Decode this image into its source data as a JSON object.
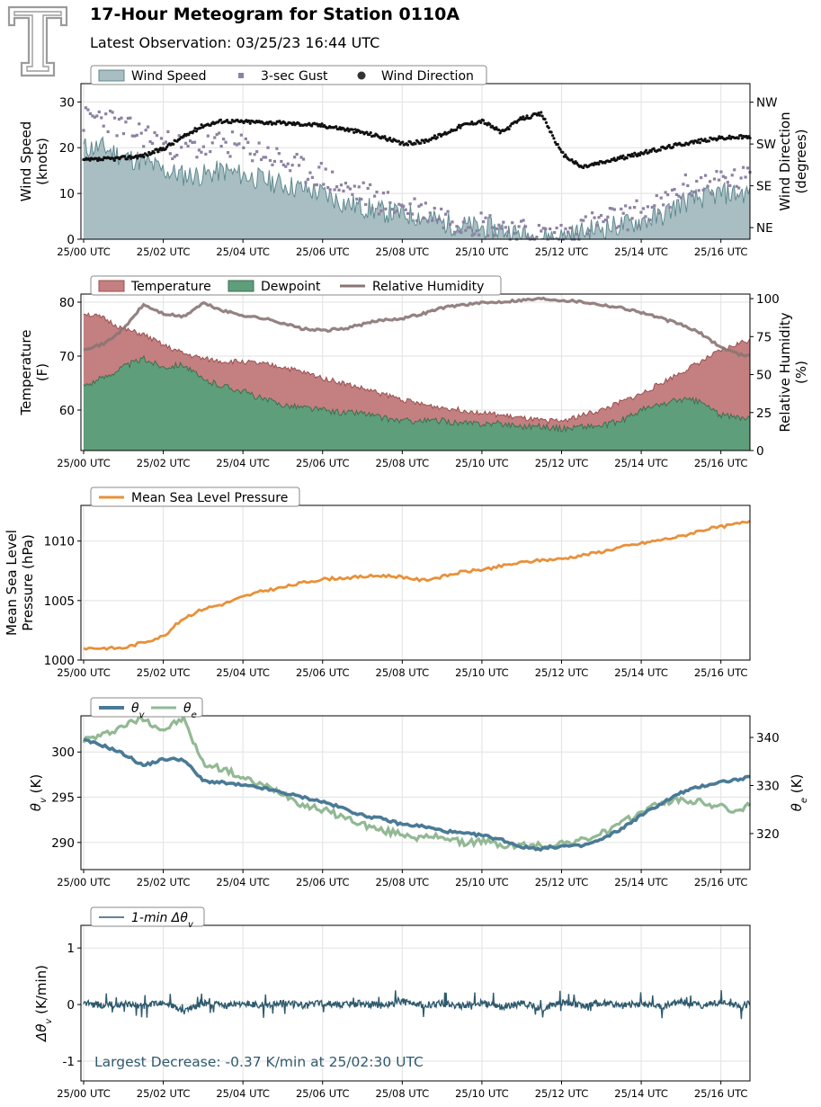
{
  "header": {
    "title": "17-Hour Meteogram for Station 0110A",
    "subtitle": "Latest Observation: 03/25/23 16:44 UTC",
    "logo_name": "texas-tech-double-t-logo"
  },
  "colors": {
    "wind_speed": "#a8bec3",
    "wind_speed_line": "#5f8a8f",
    "gust": "#8d82a2",
    "direction": "#111111",
    "temperature": "#c48080",
    "temperature_line": "#9a4f4f",
    "dewpoint": "#5f9e7a",
    "dewpoint_line": "#3e6e52",
    "rh": "#8a7474",
    "pressure": "#e8913a",
    "theta_v": "#4a7a96",
    "theta_e": "#92b994",
    "dtheta": "#2f5a6e",
    "annotation": "#2f5a6e",
    "grid": "#e6e6e6"
  },
  "x_ticks": [
    "25/00 UTC",
    "25/02 UTC",
    "25/04 UTC",
    "25/06 UTC",
    "25/08 UTC",
    "25/10 UTC",
    "25/12 UTC",
    "25/14 UTC",
    "25/16 UTC"
  ],
  "chart_data": [
    {
      "type": "area",
      "name": "wind",
      "ylabel": "Wind Speed\n(knots)",
      "y2label": "Wind Direction\n(degrees)",
      "ylim": [
        0,
        34
      ],
      "yticks": [
        0,
        10,
        20,
        30
      ],
      "y2lim": [
        20,
        355
      ],
      "y2ticks": [
        {
          "label": "NE",
          "value": 45
        },
        {
          "label": "SE",
          "value": 135
        },
        {
          "label": "SW",
          "value": 225
        },
        {
          "label": "NW",
          "value": 315
        }
      ],
      "legend": [
        "Wind Speed",
        "3-sec Gust",
        "Wind Direction"
      ],
      "legend_placement": "top-left",
      "grid": true,
      "series": [
        {
          "name": "Wind Speed",
          "x": [
            0,
            0.5,
            1,
            1.5,
            2,
            2.5,
            3,
            3.5,
            4,
            4.5,
            5,
            5.5,
            6,
            6.5,
            7,
            7.5,
            8,
            8.5,
            9,
            9.5,
            10,
            10.5,
            11,
            11.5,
            12,
            12.5,
            13,
            13.5,
            14,
            14.5,
            15,
            15.5,
            16,
            16.5,
            16.73
          ],
          "values": [
            20,
            20,
            18,
            17,
            15,
            14,
            14,
            15,
            14,
            13,
            12,
            11,
            10,
            8,
            7,
            6,
            5.5,
            5,
            3.5,
            3,
            2.5,
            2,
            1,
            0.5,
            0.5,
            1.5,
            2.5,
            3,
            4,
            5,
            8,
            9,
            10,
            10,
            10
          ]
        },
        {
          "name": "3-sec Gust",
          "x": [
            0,
            0.5,
            1,
            1.5,
            2,
            2.5,
            3,
            3.5,
            4,
            4.5,
            5,
            5.5,
            6,
            6.5,
            7,
            7.5,
            8,
            8.5,
            9,
            9.5,
            10,
            10.5,
            11,
            11.5,
            12,
            12.5,
            13,
            13.5,
            14,
            14.5,
            15,
            15.5,
            16,
            16.5,
            16.73
          ],
          "values": [
            26,
            27,
            24,
            23,
            21,
            20,
            20,
            21,
            20,
            19,
            17,
            15,
            14,
            11,
            10,
            8,
            7,
            6.5,
            5,
            4,
            3.5,
            3,
            1.5,
            1,
            1,
            2.5,
            4,
            4.5,
            6,
            7,
            11,
            12,
            13,
            13,
            13
          ]
        },
        {
          "name": "Wind Direction",
          "x": [
            0,
            0.5,
            1,
            1.5,
            2,
            2.5,
            3,
            3.5,
            4,
            4.5,
            5,
            5.5,
            6,
            6.5,
            7,
            7.5,
            8,
            8.5,
            9,
            9.5,
            10,
            10.5,
            11,
            11.5,
            12,
            12.5,
            13,
            13.5,
            14,
            14.5,
            15,
            15.5,
            16,
            16.5,
            16.73
          ],
          "values": [
            190,
            192,
            195,
            200,
            215,
            240,
            265,
            275,
            273,
            272,
            270,
            268,
            265,
            258,
            250,
            240,
            225,
            230,
            245,
            265,
            275,
            250,
            280,
            290,
            205,
            175,
            185,
            195,
            205,
            215,
            225,
            232,
            238,
            240,
            240
          ]
        }
      ]
    },
    {
      "type": "area",
      "name": "temperature",
      "ylabel": "Temperature\n(F)",
      "y2label": "Relative Humidity\n(%)",
      "ylim": [
        52.5,
        81.5
      ],
      "yticks": [
        60,
        70,
        80
      ],
      "y2lim": [
        0,
        103
      ],
      "y2ticks": [
        0,
        25,
        50,
        75,
        100
      ],
      "legend": [
        "Temperature",
        "Dewpoint",
        "Relative Humidity"
      ],
      "legend_placement": "top-left",
      "grid": true,
      "series": [
        {
          "name": "Temperature",
          "x": [
            0,
            0.5,
            1,
            1.5,
            2,
            2.5,
            3,
            3.5,
            4,
            4.5,
            5,
            5.5,
            6,
            6.5,
            7,
            7.5,
            8,
            8.5,
            9,
            9.5,
            10,
            10.5,
            11,
            11.5,
            12,
            12.5,
            13,
            13.5,
            14,
            14.5,
            15,
            15.5,
            16,
            16.5,
            16.73
          ],
          "values": [
            78,
            77,
            75,
            74,
            72,
            70.5,
            69.5,
            69,
            69,
            68.5,
            68,
            67,
            66,
            65,
            64,
            63,
            62,
            61,
            60.5,
            60,
            59.5,
            59,
            58.5,
            58,
            58,
            59,
            60,
            61.5,
            63,
            65,
            67,
            69,
            71,
            72.5,
            73
          ]
        },
        {
          "name": "Dewpoint",
          "x": [
            0,
            0.5,
            1,
            1.5,
            2,
            2.5,
            3,
            3.5,
            4,
            4.5,
            5,
            5.5,
            6,
            6.5,
            7,
            7.5,
            8,
            8.5,
            9,
            9.5,
            10,
            10.5,
            11,
            11.5,
            12,
            12.5,
            13,
            13.5,
            14,
            14.5,
            15,
            15.5,
            16,
            16.5,
            16.73
          ],
          "values": [
            64.5,
            66,
            68,
            69.5,
            68,
            68.5,
            65.5,
            64.5,
            63.5,
            62,
            61,
            60.5,
            60,
            59.5,
            59.5,
            58.5,
            58,
            58,
            58,
            57.5,
            57.5,
            57.5,
            57,
            57,
            56.5,
            57,
            57,
            58,
            60,
            61,
            62,
            61.5,
            59,
            58.5,
            59
          ]
        },
        {
          "name": "Relative Humidity",
          "x": [
            0,
            0.5,
            1,
            1.5,
            2,
            2.5,
            3,
            3.5,
            4,
            4.5,
            5,
            5.5,
            6,
            6.5,
            7,
            7.5,
            8,
            8.5,
            9,
            9.5,
            10,
            10.5,
            11,
            11.5,
            12,
            12.5,
            13,
            13.5,
            14,
            14.5,
            15,
            15.5,
            16,
            16.5,
            16.73
          ],
          "values": [
            67,
            70,
            80,
            96,
            90,
            88,
            97,
            92,
            89,
            87,
            84,
            80,
            79,
            80,
            83,
            86,
            87,
            90,
            94,
            96,
            97,
            98,
            99,
            100,
            99,
            98,
            96,
            94,
            91,
            87,
            83,
            77,
            68,
            63,
            63
          ]
        }
      ]
    },
    {
      "type": "line",
      "name": "pressure",
      "ylabel": "Mean Sea Level\nPressure (hPa)",
      "ylim": [
        1000,
        1013
      ],
      "yticks": [
        1000,
        1005,
        1010
      ],
      "legend": [
        "Mean Sea Level Pressure"
      ],
      "legend_placement": "top-left",
      "grid": true,
      "series": [
        {
          "name": "Mean Sea Level Pressure",
          "x": [
            0,
            0.5,
            1,
            1.5,
            2,
            2.5,
            3,
            3.5,
            4,
            4.5,
            5,
            5.5,
            6,
            6.5,
            7,
            7.5,
            8,
            8.5,
            9,
            9.5,
            10,
            10.5,
            11,
            11.5,
            12,
            12.5,
            13,
            13.5,
            14,
            14.5,
            15,
            15.5,
            16,
            16.5,
            16.73
          ],
          "values": [
            1001,
            1001,
            1001,
            1001.5,
            1002,
            1003.5,
            1004.3,
            1004.7,
            1005.3,
            1005.8,
            1006.1,
            1006.5,
            1006.8,
            1006.9,
            1007,
            1007.1,
            1007,
            1006.7,
            1007,
            1007.4,
            1007.6,
            1007.9,
            1008.2,
            1008.4,
            1008.5,
            1008.8,
            1009.1,
            1009.5,
            1009.8,
            1010.1,
            1010.4,
            1010.9,
            1011.2,
            1011.5,
            1011.7
          ]
        }
      ]
    },
    {
      "type": "line",
      "name": "theta",
      "ylabel": "θv (K)",
      "y2label": "θe (K)",
      "ylim": [
        287,
        304
      ],
      "yticks": [
        290,
        295,
        300
      ],
      "y2lim": [
        312.5,
        344.5
      ],
      "y2ticks": [
        320,
        330,
        340
      ],
      "legend": [
        "θv",
        "θe"
      ],
      "legend_placement": "top-left",
      "grid": true,
      "series": [
        {
          "name": "θv",
          "x": [
            0,
            0.5,
            1,
            1.5,
            2,
            2.5,
            3,
            3.5,
            4,
            4.5,
            5,
            5.5,
            6,
            6.5,
            7,
            7.5,
            8,
            8.5,
            9,
            9.5,
            10,
            10.5,
            11,
            11.5,
            12,
            12.5,
            13,
            13.5,
            14,
            14.5,
            15,
            15.5,
            16,
            16.5,
            16.73
          ],
          "values": [
            301.3,
            300.7,
            299.8,
            298.5,
            299.2,
            299.2,
            296.8,
            296.6,
            296.3,
            296,
            295.5,
            295,
            294.5,
            293.8,
            293,
            292.6,
            292,
            291.8,
            291.3,
            291,
            290.8,
            290.3,
            289.5,
            289.3,
            289.6,
            289.6,
            290.3,
            291.5,
            293,
            294.3,
            295.5,
            296.2,
            296.7,
            297.0,
            297.2
          ]
        },
        {
          "name": "θe",
          "x": [
            0,
            0.5,
            1,
            1.5,
            2,
            2.5,
            3,
            3.5,
            4,
            4.5,
            5,
            5.5,
            6,
            6.5,
            7,
            7.5,
            8,
            8.5,
            9,
            9.5,
            10,
            10.5,
            11,
            11.5,
            12,
            12.5,
            13,
            13.5,
            14,
            14.5,
            15,
            15.5,
            16,
            16.5,
            16.73
          ],
          "values": [
            339.5,
            340.5,
            342.5,
            344,
            341.5,
            344,
            334.5,
            333.5,
            331.5,
            330,
            328.5,
            326,
            325,
            323.5,
            322,
            320.5,
            320,
            319,
            319.5,
            318,
            318.5,
            317.5,
            317.5,
            317.5,
            318,
            318.5,
            320,
            322,
            324.5,
            326.5,
            327,
            326.5,
            325.5,
            324.5,
            326
          ]
        }
      ]
    },
    {
      "type": "line",
      "name": "dtheta",
      "ylabel": "Δθv (K/min)",
      "ylim": [
        -1.35,
        1.4
      ],
      "yticks": [
        -1,
        0,
        1
      ],
      "legend": [
        "1-min Δθv"
      ],
      "legend_placement": "top-left",
      "grid": true,
      "annotation": "Largest Decrease: -0.37 K/min at 25/02:30 UTC",
      "series": [
        {
          "name": "1-min Δθv",
          "x": [
            0,
            0.5,
            1,
            1.5,
            2,
            2.5,
            3,
            3.5,
            4,
            4.5,
            5,
            5.5,
            6,
            6.5,
            7,
            7.5,
            8,
            8.5,
            9,
            9.5,
            10,
            10.5,
            11,
            11.5,
            12,
            12.5,
            13,
            13.5,
            14,
            14.5,
            15,
            15.5,
            16,
            16.5,
            16.73
          ],
          "values": [
            0.05,
            -0.02,
            0.03,
            -0.05,
            0.1,
            -0.37,
            0.08,
            -0.05,
            0.04,
            -0.03,
            0.05,
            -0.04,
            0.03,
            -0.02,
            0.06,
            -0.05,
            0.15,
            -0.04,
            0.05,
            -0.06,
            0.08,
            -0.1,
            0.05,
            -0.2,
            0.1,
            -0.05,
            0.08,
            -0.06,
            0.05,
            -0.1,
            0.12,
            -0.08,
            0.15,
            -0.12,
            0.1
          ]
        }
      ]
    }
  ]
}
